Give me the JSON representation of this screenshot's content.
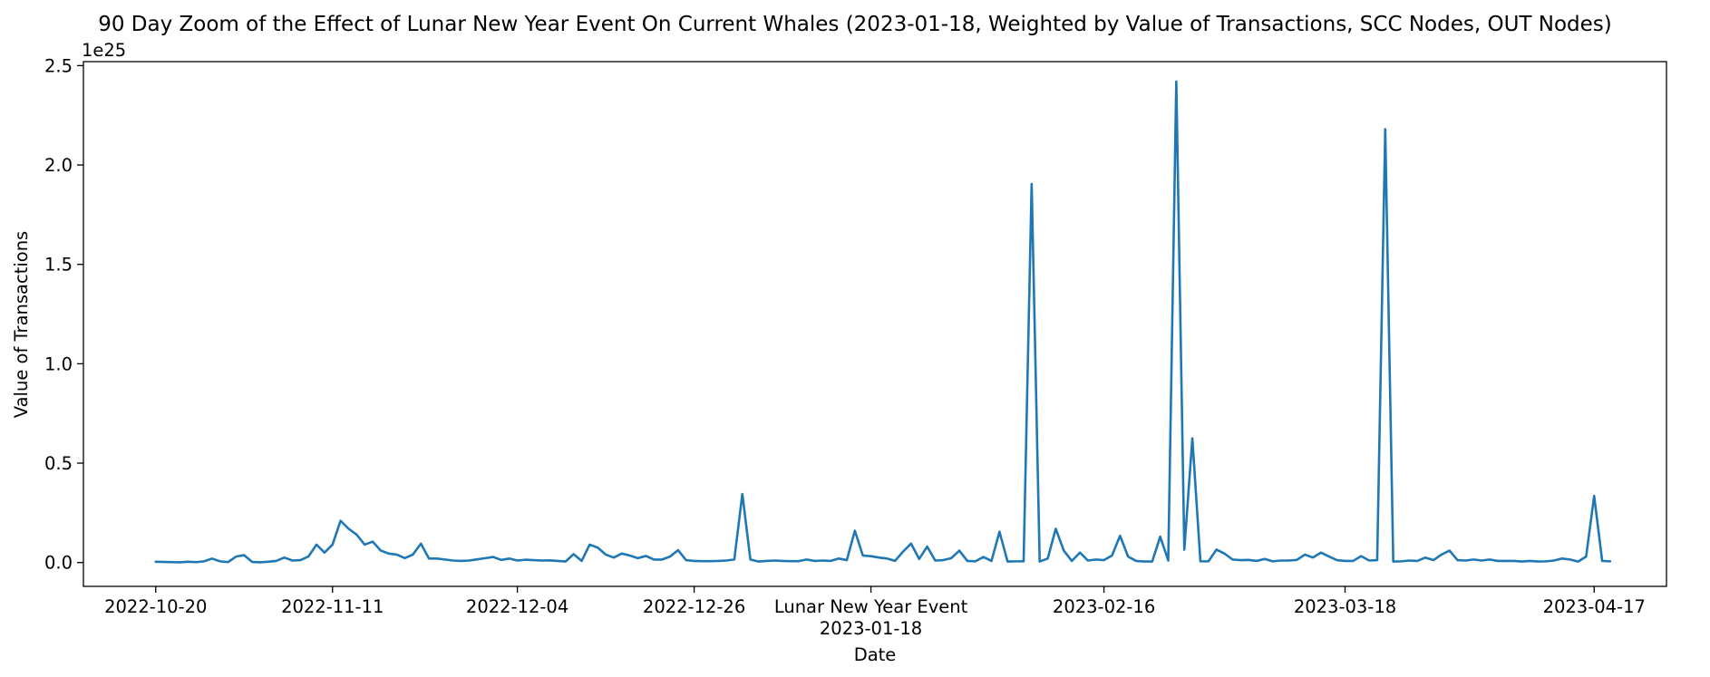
{
  "chart_data": {
    "type": "line",
    "title": "90 Day Zoom of the Effect of Lunar New Year Event On Current Whales (2023-01-18, Weighted by Value of Transactions, SCC Nodes, OUT Nodes)",
    "xlabel": "Date",
    "ylabel": "Value of Transactions",
    "y_offset_label": "1e25",
    "y_scale": 1e+25,
    "ylim": [
      -0.12,
      2.52
    ],
    "yticks": [
      0.0,
      0.5,
      1.0,
      1.5,
      2.0,
      2.5
    ],
    "ytick_labels": [
      "0.0",
      "0.5",
      "1.0",
      "1.5",
      "2.0",
      "2.5"
    ],
    "x_start": "2022-10-20",
    "x_end": "2023-04-17",
    "xlim_days": [
      -9,
      188
    ],
    "xticks": [
      {
        "day": 0,
        "label": "2022-10-20"
      },
      {
        "day": 22,
        "label": "2022-11-11"
      },
      {
        "day": 45,
        "label": "2022-12-04"
      },
      {
        "day": 67,
        "label": "2022-12-26"
      },
      {
        "day": 89,
        "label": "Lunar New Year Event",
        "sublabel": "2023-01-18"
      },
      {
        "day": 118,
        "label": "2023-02-16"
      },
      {
        "day": 148,
        "label": "2023-03-18"
      },
      {
        "day": 179,
        "label": "2023-04-17"
      }
    ],
    "grid": false,
    "line_color": "#1f77b4",
    "series": [
      {
        "name": "Value of Transactions",
        "values": [
          0.004,
          0.003,
          0.002,
          0.001,
          0.004,
          0.002,
          0.006,
          0.02,
          0.006,
          0.002,
          0.03,
          0.037,
          0.003,
          0.001,
          0.004,
          0.008,
          0.025,
          0.01,
          0.012,
          0.03,
          0.09,
          0.05,
          0.09,
          0.21,
          0.17,
          0.14,
          0.09,
          0.105,
          0.06,
          0.045,
          0.04,
          0.022,
          0.04,
          0.095,
          0.02,
          0.02,
          0.015,
          0.01,
          0.008,
          0.01,
          0.016,
          0.022,
          0.028,
          0.013,
          0.02,
          0.01,
          0.014,
          0.012,
          0.01,
          0.011,
          0.008,
          0.005,
          0.042,
          0.008,
          0.09,
          0.075,
          0.04,
          0.025,
          0.045,
          0.035,
          0.022,
          0.033,
          0.015,
          0.015,
          0.03,
          0.062,
          0.012,
          0.008,
          0.007,
          0.007,
          0.008,
          0.01,
          0.015,
          0.345,
          0.015,
          0.005,
          0.008,
          0.01,
          0.008,
          0.007,
          0.007,
          0.015,
          0.008,
          0.01,
          0.008,
          0.02,
          0.012,
          0.16,
          0.035,
          0.032,
          0.025,
          0.02,
          0.008,
          0.055,
          0.095,
          0.018,
          0.08,
          0.01,
          0.012,
          0.022,
          0.06,
          0.008,
          0.006,
          0.028,
          0.008,
          0.155,
          0.005,
          0.006,
          0.006,
          1.905,
          0.005,
          0.02,
          0.17,
          0.06,
          0.008,
          0.05,
          0.01,
          0.015,
          0.012,
          0.035,
          0.135,
          0.03,
          0.008,
          0.005,
          0.005,
          0.13,
          0.01,
          2.42,
          0.065,
          0.625,
          0.006,
          0.006,
          0.065,
          0.045,
          0.015,
          0.012,
          0.013,
          0.008,
          0.018,
          0.006,
          0.01,
          0.01,
          0.013,
          0.04,
          0.025,
          0.05,
          0.03,
          0.012,
          0.008,
          0.008,
          0.032,
          0.01,
          0.012,
          2.18,
          0.005,
          0.006,
          0.01,
          0.008,
          0.025,
          0.012,
          0.04,
          0.06,
          0.012,
          0.01,
          0.015,
          0.01,
          0.015,
          0.008,
          0.008,
          0.008,
          0.005,
          0.008,
          0.005,
          0.006,
          0.01,
          0.02,
          0.015,
          0.005,
          0.03,
          0.335,
          0.008,
          0.006
        ]
      }
    ]
  }
}
